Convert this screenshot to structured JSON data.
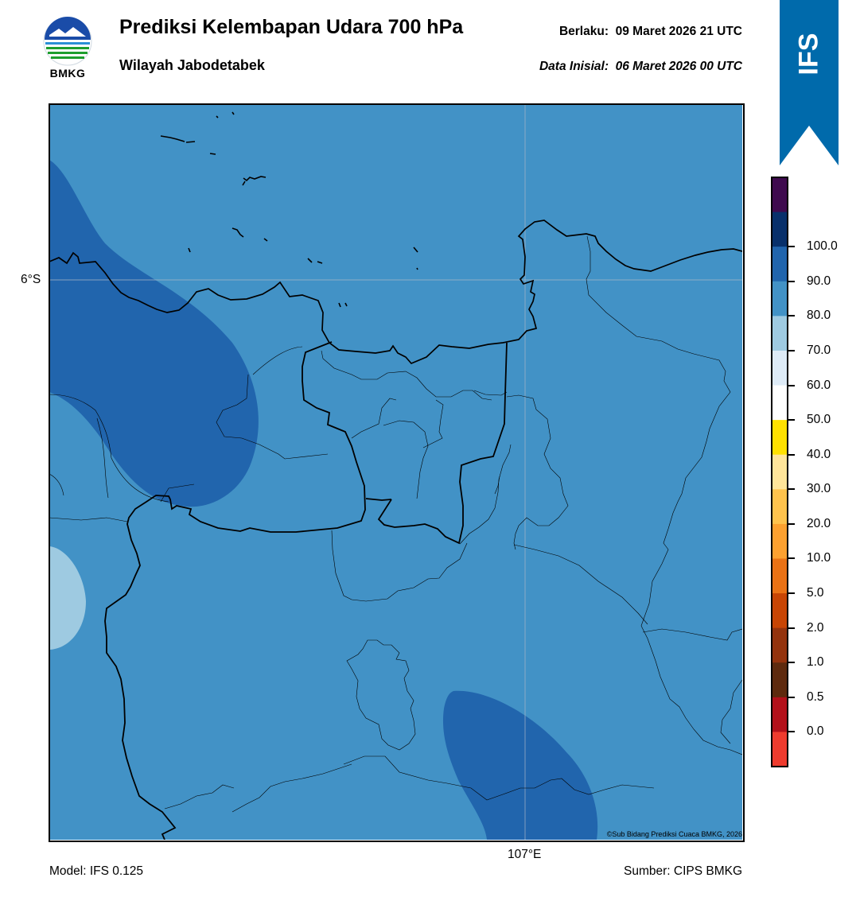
{
  "header": {
    "logo_text": "BMKG",
    "title": "Prediksi Kelembapan Udara 700 hPa",
    "region": "Wilayah Jabodetabek",
    "valid_label": "Berlaku:",
    "valid_time": "09 Maret 2026 21 UTC",
    "init_label": "Data Inisial:",
    "init_time": "06 Maret 2026 00 UTC"
  },
  "badge": {
    "text": "IFS",
    "color": "#006aab"
  },
  "map": {
    "lat_label": "6°S",
    "lon_label": "107°E",
    "credit": "©Sub Bidang Prediksi Cuaca BMKG, 2026",
    "background_class_color": "#4292c6"
  },
  "colorbar": {
    "labels": [
      "100.0",
      "90.0",
      "80.0",
      "70.0",
      "60.0",
      "50.0",
      "40.0",
      "30.0",
      "20.0",
      "10.0",
      "5.0",
      "2.0",
      "1.0",
      "0.5",
      "0.0"
    ],
    "colors_top_to_bottom": [
      "#3f0a4f",
      "#08306b",
      "#2165ad",
      "#4292c6",
      "#9ecae1",
      "#deebf7",
      "#ffffff",
      "#ffe100",
      "#ffe59a",
      "#ffc34d",
      "#fda130",
      "#ea7215",
      "#c84504",
      "#94330d",
      "#5e2a0e",
      "#b3101a",
      "#ee3b2e"
    ]
  },
  "footer": {
    "model": "Model: IFS 0.125",
    "source": "Sumber: CIPS BMKG"
  }
}
